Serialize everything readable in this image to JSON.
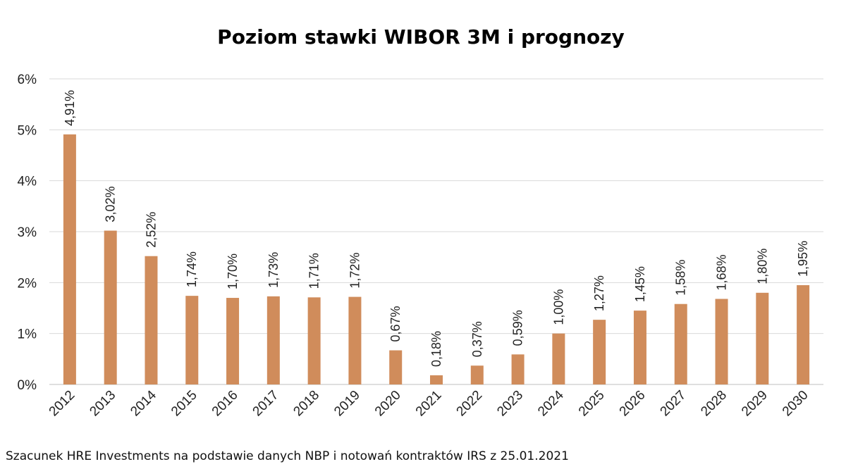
{
  "chart_data": {
    "type": "bar",
    "title": "Poziom stawki WIBOR 3M i prognozy",
    "categories": [
      "2012",
      "2013",
      "2014",
      "2015",
      "2016",
      "2017",
      "2018",
      "2019",
      "2020",
      "2021",
      "2022",
      "2023",
      "2024",
      "2025",
      "2026",
      "2027",
      "2028",
      "2029",
      "2030"
    ],
    "values": [
      4.91,
      3.02,
      2.52,
      1.74,
      1.7,
      1.73,
      1.71,
      1.72,
      0.67,
      0.18,
      0.37,
      0.59,
      1.0,
      1.27,
      1.45,
      1.58,
      1.68,
      1.8,
      1.95
    ],
    "data_labels": [
      "4,91%",
      "3,02%",
      "2,52%",
      "1,74%",
      "1,70%",
      "1,73%",
      "1,71%",
      "1,72%",
      "0,67%",
      "0,18%",
      "0,37%",
      "0,59%",
      "1,00%",
      "1,27%",
      "1,45%",
      "1,58%",
      "1,68%",
      "1,80%",
      "1,95%"
    ],
    "y_ticks": [
      0,
      1,
      2,
      3,
      4,
      5,
      6
    ],
    "y_tick_labels": [
      "0%",
      "1%",
      "2%",
      "3%",
      "4%",
      "5%",
      "6%"
    ],
    "ylim": [
      0,
      6
    ],
    "grid": true,
    "bar_color": "#d08c5b"
  },
  "caption": "Szacunek HRE Investments na podstawie danych NBP i notowań kontraktów IRS z 25.01.2021"
}
